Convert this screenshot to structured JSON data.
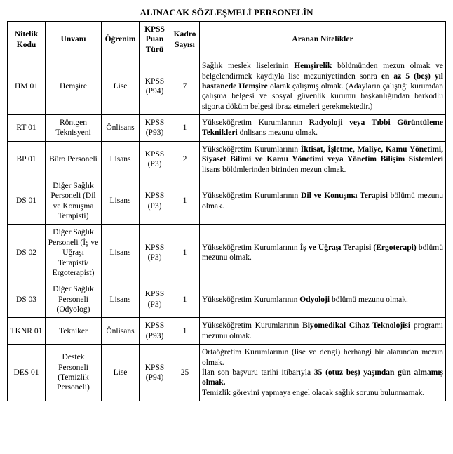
{
  "title": "ALINACAK SÖZLEŞMELİ PERSONELİN",
  "headers": {
    "code": "Nitelik Kodu",
    "position": "Unvanı",
    "education": "Öğrenim",
    "kpss": "KPSS Puan Türü",
    "count": "Kadro Sayısı",
    "requirements": "Aranan Nitelikler"
  },
  "rows": [
    {
      "code": "HM 01",
      "position": "Hemşire",
      "education": "Lise",
      "kpss": "KPSS (P94)",
      "count": "7",
      "req_html": "Sağlık meslek liselerinin <b>Hemşirelik</b> bölümünden mezun olmak ve belgelendirmek kaydıyla lise mezuniyetinden sonra <b>en az 5 (beş) yıl hastanede Hemşire</b> olarak çalışmış olmak. (Adayların çalıştığı kurumdan çalışma belgesi ve sosyal güvenlik kurumu başkanlığından barkodlu sigorta döküm belgesi ibraz etmeleri gerekmektedir.)"
    },
    {
      "code": "RT 01",
      "position": "Röntgen Teknisyeni",
      "education": "Önlisans",
      "kpss": "KPSS (P93)",
      "count": "1",
      "req_html": "Yükseköğretim Kurumlarının <b>Radyoloji veya Tıbbi Görüntüleme Teknikleri</b> önlisans mezunu olmak."
    },
    {
      "code": "BP 01",
      "position": "Büro Personeli",
      "education": "Lisans",
      "kpss": "KPSS (P3)",
      "count": "2",
      "req_html": "Yükseköğretim Kurumlarının <b>İktisat, İşletme, Maliye, Kamu Yönetimi, Siyaset Bilimi ve Kamu Yönetimi veya Yönetim Bilişim Sistemleri</b> lisans bölümlerinden birinden mezun olmak."
    },
    {
      "code": "DS 01",
      "position": "Diğer Sağlık Personeli (Dil ve Konuşma Terapisti)",
      "education": "Lisans",
      "kpss": "KPSS (P3)",
      "count": "1",
      "req_html": "Yükseköğretim Kurumlarının <b>Dil ve Konuşma Terapisi</b> bölümü mezunu olmak."
    },
    {
      "code": "DS 02",
      "position": "Diğer Sağlık Personeli (İş ve Uğraşı Terapisti/ Ergoterapist)",
      "education": "Lisans",
      "kpss": "KPSS (P3)",
      "count": "1",
      "req_html": "Yükseköğretim Kurumlarının <b>İş ve Uğraşı Terapisi (Ergoterapi)</b> bölümü mezunu olmak."
    },
    {
      "code": "DS 03",
      "position": "Diğer Sağlık Personeli (Odyolog)",
      "education": "Lisans",
      "kpss": "KPSS (P3)",
      "count": "1",
      "req_html": "Yükseköğretim Kurumlarının <b>Odyoloji</b> bölümü mezunu olmak."
    },
    {
      "code": "TKNR 01",
      "position": "Tekniker",
      "education": "Önlisans",
      "kpss": "KPSS (P93)",
      "count": "1",
      "req_html": "Yükseköğretim Kurumlarının <b>Biyomedikal Cihaz Teknolojisi</b> programı mezunu olmak."
    },
    {
      "code": "DES 01",
      "position": "Destek Personeli (Temizlik Personeli)",
      "education": "Lise",
      "kpss": "KPSS (P94)",
      "count": "25",
      "req_html": "Ortaöğretim Kurumlarının (lise ve dengi) herhangi bir alanından mezun olmak.<br>İlan son başvuru tarihi itibarıyla <b>35 (otuz beş) yaşından gün almamış olmak.</b><br>Temizlik görevini yapmaya engel olacak sağlık sorunu bulunmamak."
    }
  ]
}
